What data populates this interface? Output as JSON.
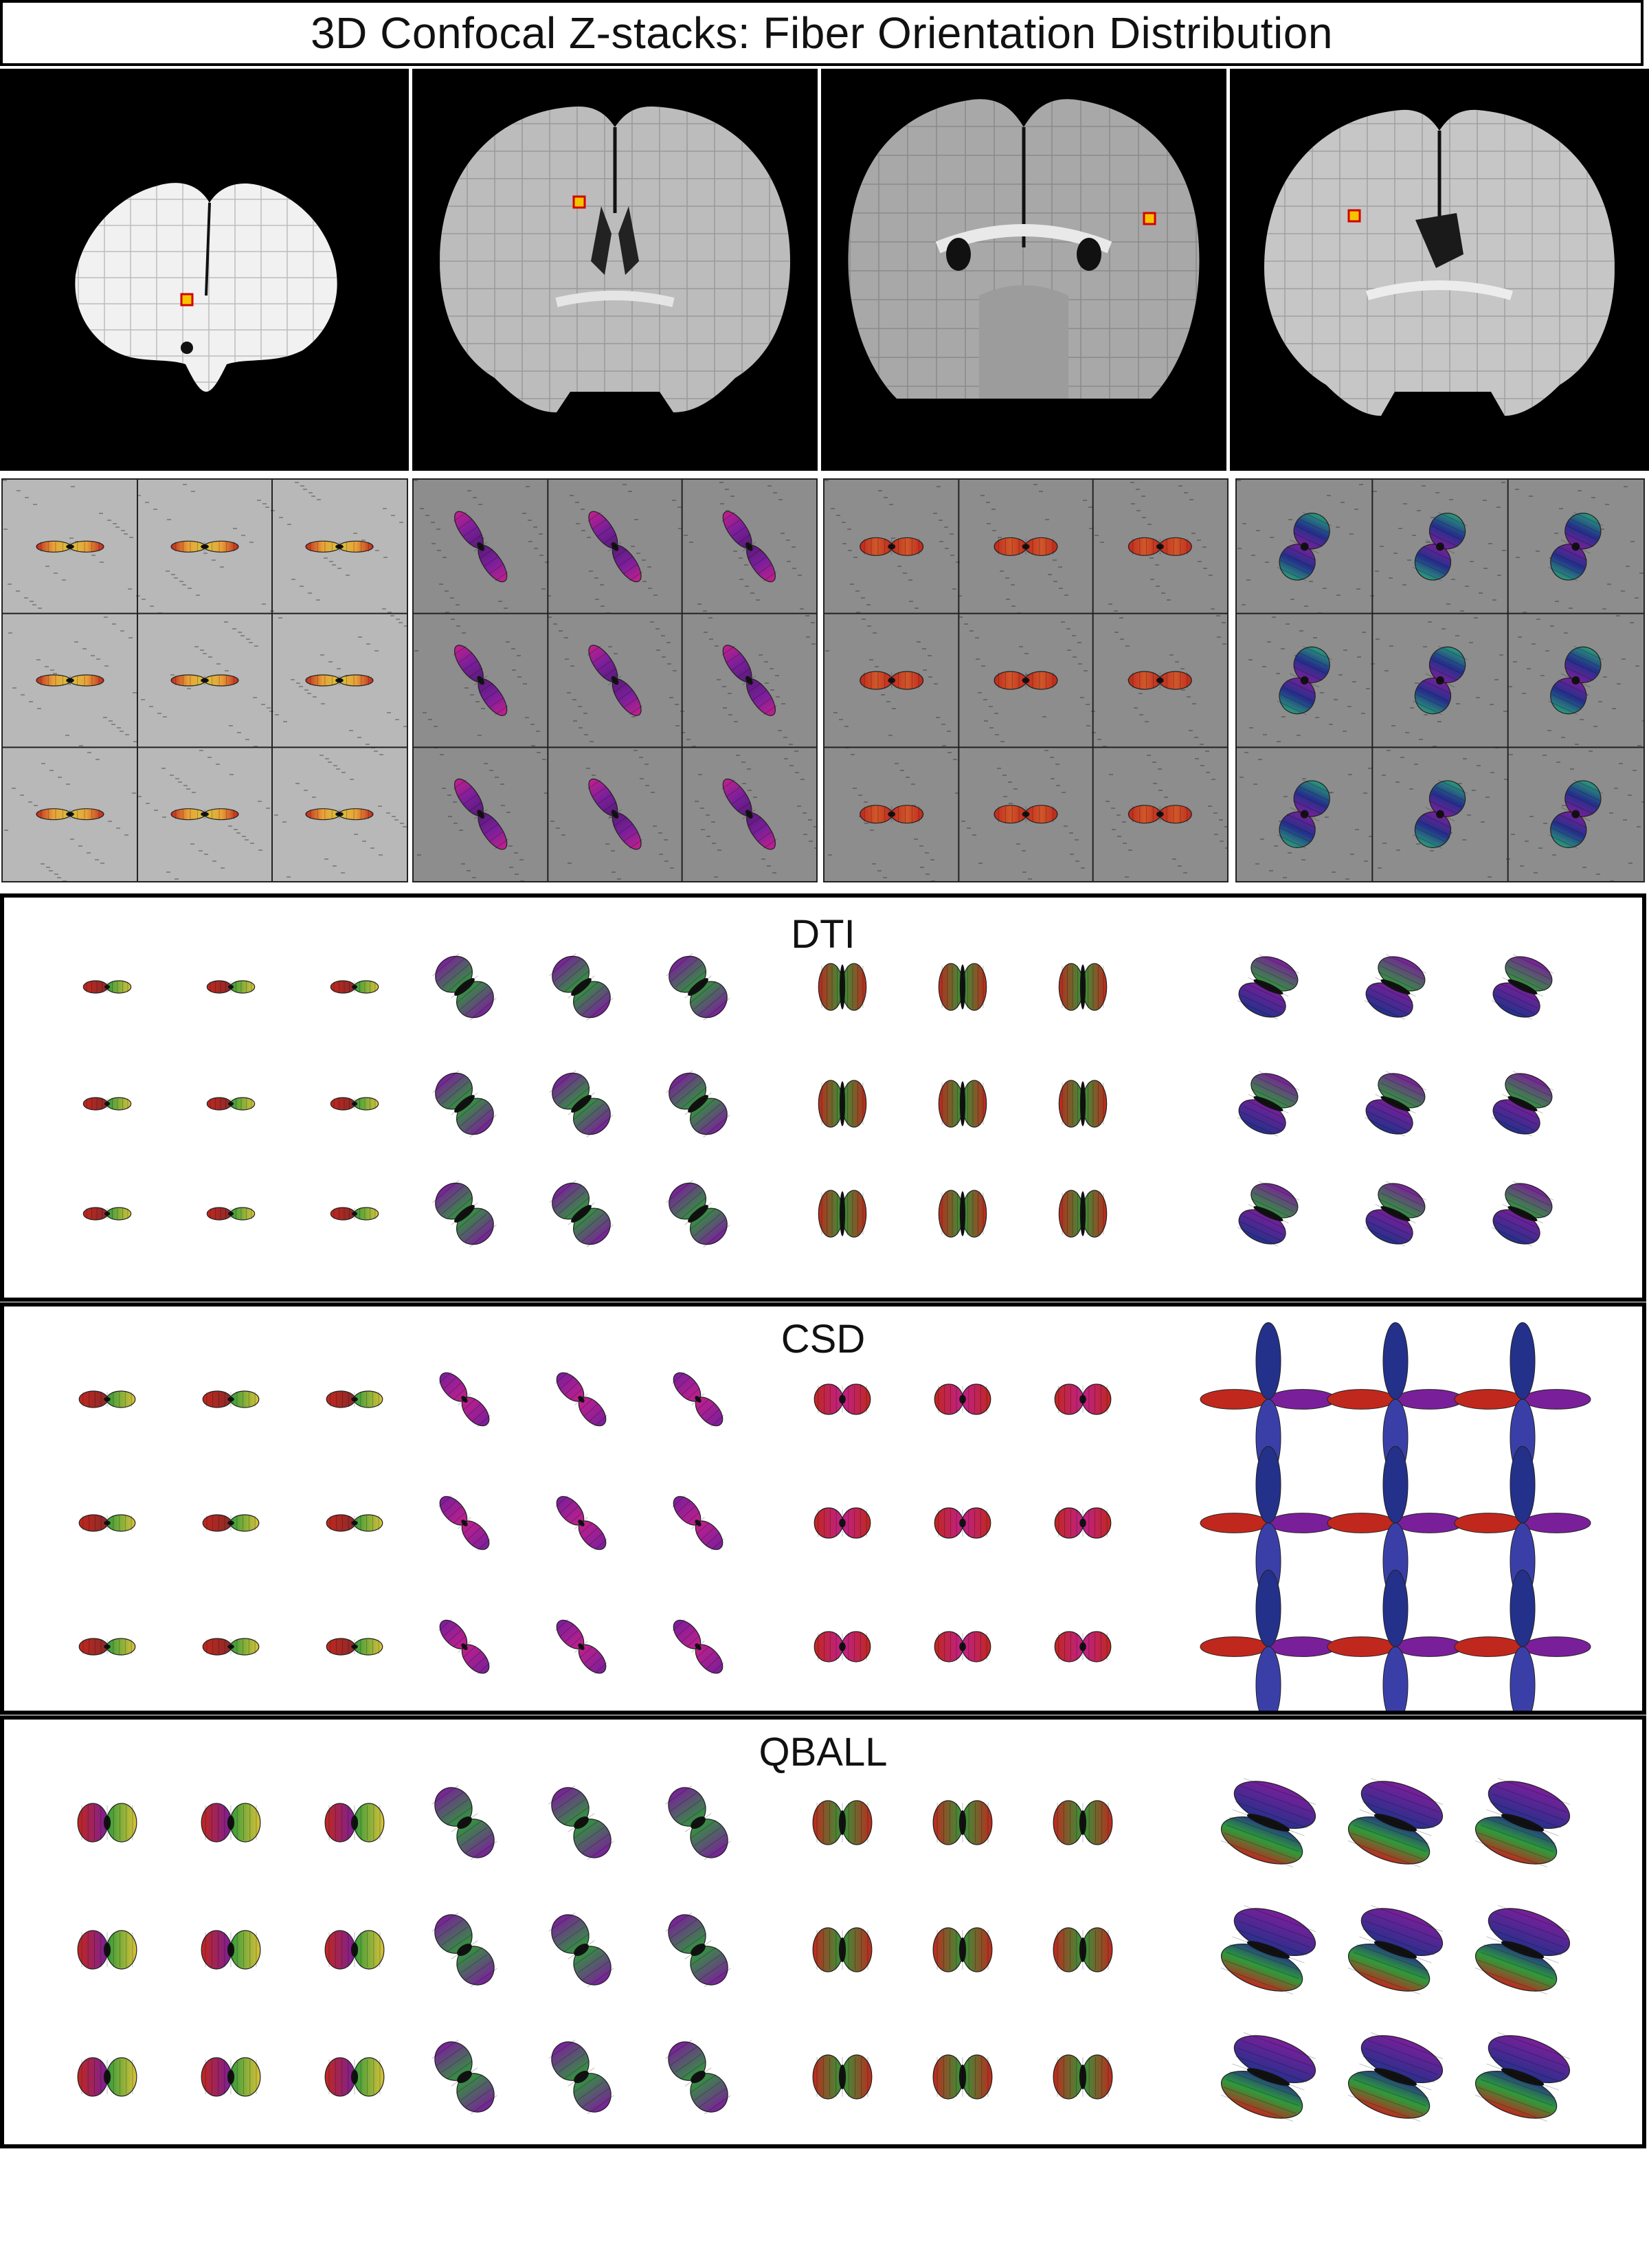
{
  "figure": {
    "title": "3D Confocal Z-stacks: Fiber Orientation Distribution"
  },
  "brain_sections": [
    {
      "id": "section-1",
      "roi_color": "#f5c400",
      "roi_border": "#d40000"
    },
    {
      "id": "section-2",
      "roi_color": "#f5c400",
      "roi_border": "#d40000"
    },
    {
      "id": "section-3",
      "roi_color": "#f5c400",
      "roi_border": "#d40000"
    },
    {
      "id": "section-4",
      "roi_color": "#f5c400",
      "roi_border": "#d40000"
    }
  ],
  "microscopy_grids": {
    "rows": 3,
    "cols": 3,
    "glyph_palettes": [
      "red-yellow",
      "magenta-purple",
      "red-orange",
      "green-blue-purple"
    ]
  },
  "models": [
    {
      "key": "dti",
      "label": "DTI"
    },
    {
      "key": "csd",
      "label": "CSD"
    },
    {
      "key": "qball",
      "label": "QBALL"
    }
  ],
  "colors": {
    "red": "#c0281e",
    "yellow": "#d9c23a",
    "green": "#2f9a3a",
    "blue": "#23318a",
    "purple": "#7a1f9a",
    "magenta": "#c0208c",
    "border": "#000000"
  }
}
